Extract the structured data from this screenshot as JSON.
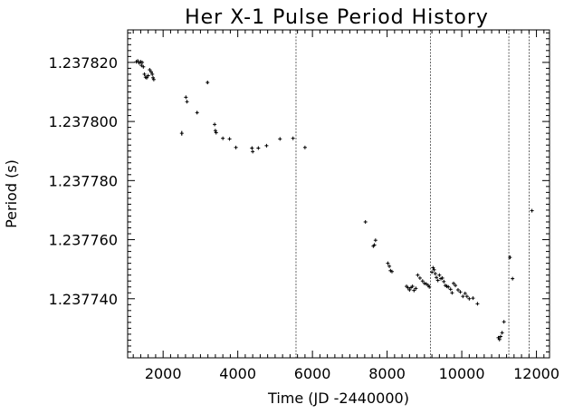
{
  "chart_data": {
    "type": "scatter",
    "title": "Her X-1 Pulse Period History",
    "xlabel": "Time (JD -2440000)",
    "ylabel": "Period (s)",
    "xlim": [
      1050,
      12350
    ],
    "ylim": [
      1.23772,
      1.237831
    ],
    "xticks": [
      2000,
      4000,
      6000,
      8000,
      10000,
      12000
    ],
    "xtick_labels": [
      "2000",
      "4000",
      "6000",
      "8000",
      "10000",
      "12000"
    ],
    "yticks": [
      1.23774,
      1.23776,
      1.23778,
      1.2378,
      1.23782
    ],
    "ytick_labels": [
      "1.237740",
      "1.237760",
      "1.237780",
      "1.237800",
      "1.237820"
    ],
    "vertical_lines_x": [
      5560,
      9160,
      11260,
      11800
    ],
    "grid": false,
    "legend": "none",
    "points": [
      [
        1280,
        1.2378202,
        0
      ],
      [
        1320,
        1.2378205,
        0
      ],
      [
        1360,
        1.2378198,
        0
      ],
      [
        1400,
        1.2378202,
        0
      ],
      [
        1420,
        1.237819,
        0
      ],
      [
        1440,
        1.23782,
        0
      ],
      [
        1470,
        1.2378185,
        0
      ],
      [
        1500,
        1.237816,
        0
      ],
      [
        1530,
        1.237815,
        0
      ],
      [
        1560,
        1.2378148,
        0
      ],
      [
        1600,
        1.2378155,
        0
      ],
      [
        1640,
        1.2378175,
        0
      ],
      [
        1680,
        1.2378168,
        0
      ],
      [
        1710,
        1.237816,
        0
      ],
      [
        1730,
        1.2378148,
        0
      ],
      [
        1750,
        1.2378142,
        0
      ],
      [
        2500,
        1.237796,
        8e-07
      ],
      [
        2610,
        1.2378082,
        0
      ],
      [
        2640,
        1.2378067,
        0
      ],
      [
        2910,
        1.237803,
        4e-07
      ],
      [
        3190,
        1.2378132,
        5e-07
      ],
      [
        3380,
        1.237799,
        0
      ],
      [
        3400,
        1.2377969,
        0
      ],
      [
        3420,
        1.2377962,
        0
      ],
      [
        3600,
        1.2377943,
        0
      ],
      [
        3780,
        1.2377941,
        0
      ],
      [
        3950,
        1.2377912,
        0
      ],
      [
        4380,
        1.237791,
        4e-07
      ],
      [
        4400,
        1.2377898,
        0
      ],
      [
        4550,
        1.237791,
        2e-07
      ],
      [
        4770,
        1.2377918,
        3e-07
      ],
      [
        5130,
        1.2377941,
        0
      ],
      [
        5480,
        1.2377943,
        0
      ],
      [
        5800,
        1.2377912,
        1e-07
      ],
      [
        7420,
        1.237766,
        0
      ],
      [
        7630,
        1.2377578,
        0
      ],
      [
        7660,
        1.2377582,
        0
      ],
      [
        7690,
        1.2377598,
        0
      ],
      [
        8020,
        1.237752,
        0
      ],
      [
        8060,
        1.237751,
        0
      ],
      [
        8090,
        1.2377495,
        0
      ],
      [
        8130,
        1.2377492,
        0
      ],
      [
        8520,
        1.2377442,
        0
      ],
      [
        8560,
        1.2377437,
        0
      ],
      [
        8600,
        1.237743,
        0
      ],
      [
        8640,
        1.2377438,
        0
      ],
      [
        8680,
        1.2377442,
        0
      ],
      [
        8720,
        1.2377428,
        0
      ],
      [
        8770,
        1.2377435,
        0
      ],
      [
        8820,
        1.237748,
        0
      ],
      [
        8880,
        1.237747,
        0
      ],
      [
        8950,
        1.237746,
        0
      ],
      [
        9000,
        1.2377452,
        0
      ],
      [
        9050,
        1.237745,
        0
      ],
      [
        9100,
        1.2377445,
        0
      ],
      [
        9130,
        1.237744,
        0
      ],
      [
        9200,
        1.237749,
        0
      ],
      [
        9230,
        1.2377505,
        0
      ],
      [
        9260,
        1.2377498,
        0
      ],
      [
        9290,
        1.2377485,
        0
      ],
      [
        9320,
        1.2377472,
        0
      ],
      [
        9360,
        1.2377462,
        0
      ],
      [
        9400,
        1.237748,
        0
      ],
      [
        9440,
        1.2377468,
        0
      ],
      [
        9480,
        1.237747,
        0
      ],
      [
        9520,
        1.2377458,
        0
      ],
      [
        9560,
        1.2377445,
        0
      ],
      [
        9600,
        1.2377442,
        0
      ],
      [
        9640,
        1.237744,
        0
      ],
      [
        9700,
        1.2377432,
        0
      ],
      [
        9740,
        1.237742,
        0
      ],
      [
        9780,
        1.2377452,
        0
      ],
      [
        9830,
        1.2377445,
        0
      ],
      [
        9900,
        1.237743,
        0
      ],
      [
        9960,
        1.2377423,
        0
      ],
      [
        10030,
        1.2377408,
        0
      ],
      [
        10090,
        1.2377418,
        0
      ],
      [
        10140,
        1.2377408,
        0
      ],
      [
        10200,
        1.23774,
        0
      ],
      [
        10300,
        1.2377402,
        0
      ],
      [
        10420,
        1.2377383,
        0
      ],
      [
        10980,
        1.2377268,
        0
      ],
      [
        11010,
        1.2377262,
        0
      ],
      [
        11040,
        1.2377272,
        0
      ],
      [
        11080,
        1.2377285,
        0
      ],
      [
        11130,
        1.2377322,
        0
      ],
      [
        11290,
        1.237754,
        6e-07
      ],
      [
        11360,
        1.2377468,
        2e-07
      ],
      [
        11880,
        1.2377698,
        0
      ]
    ]
  }
}
